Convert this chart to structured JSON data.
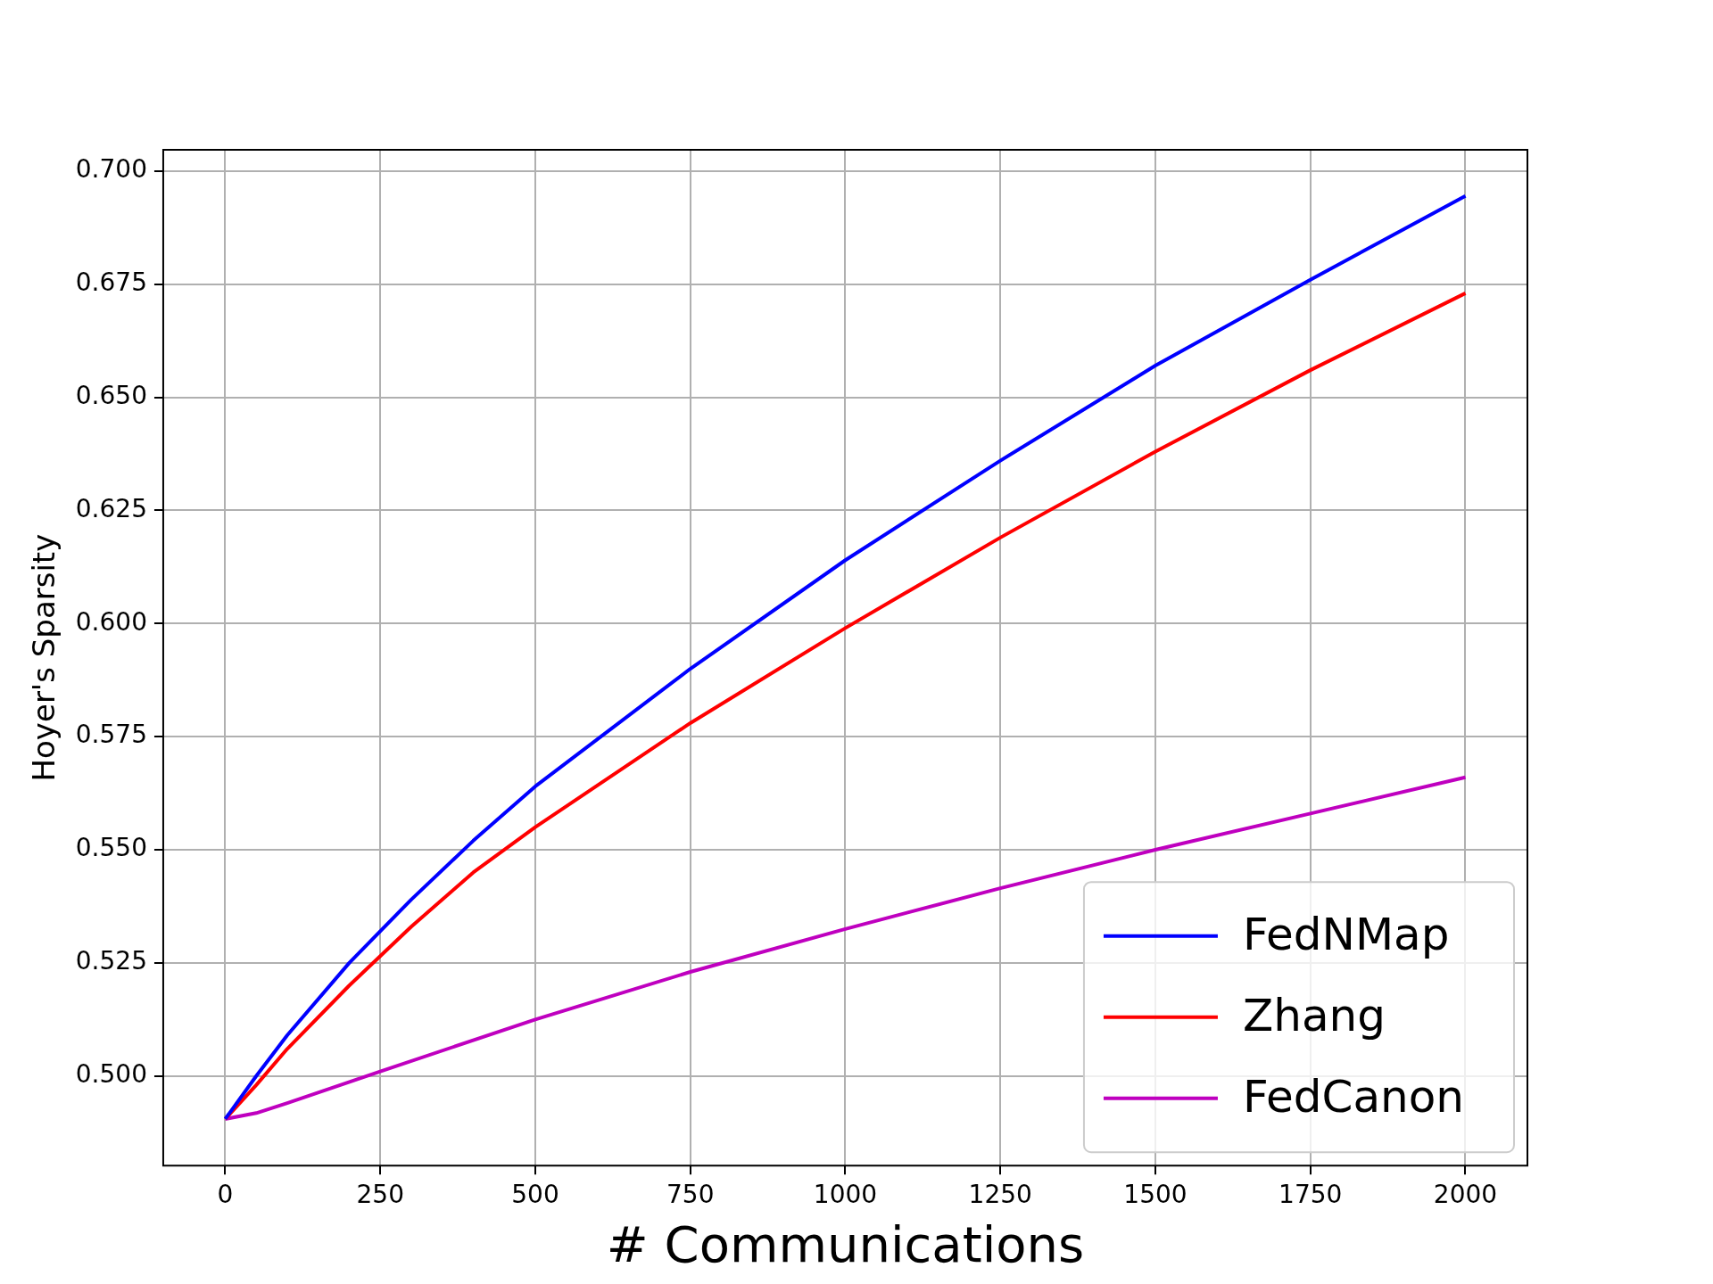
{
  "chart_data": {
    "type": "line",
    "xlabel": "# Communications",
    "ylabel": "Hoyer's Sparsity",
    "xlim": [
      -100,
      2100
    ],
    "xticks": [
      0,
      250,
      500,
      750,
      1000,
      1250,
      1500,
      1750,
      2000
    ],
    "ylim": [
      0.4802,
      0.7047
    ],
    "yticks": [
      {
        "value": 0.5,
        "label": "0.500"
      },
      {
        "value": 0.525,
        "label": "0.525"
      },
      {
        "value": 0.55,
        "label": "0.550"
      },
      {
        "value": 0.575,
        "label": "0.575"
      },
      {
        "value": 0.6,
        "label": "0.600"
      },
      {
        "value": 0.625,
        "label": "0.625"
      },
      {
        "value": 0.65,
        "label": "0.650"
      },
      {
        "value": 0.675,
        "label": "0.675"
      },
      {
        "value": 0.7,
        "label": "0.700"
      }
    ],
    "grid": true,
    "legend": "bottom right",
    "line_style": "solid",
    "marker": "none",
    "series": [
      {
        "name": "FedNMap",
        "color": "#0000ff",
        "x": [
          0,
          50,
          100,
          200,
          300,
          400,
          500,
          750,
          1000,
          1250,
          1500,
          1750,
          2000
        ],
        "values": [
          0.4905,
          0.5,
          0.509,
          0.525,
          0.539,
          0.552,
          0.564,
          0.59,
          0.614,
          0.636,
          0.657,
          0.676,
          0.6945
        ]
      },
      {
        "name": "Zhang",
        "color": "#ff0000",
        "x": [
          0,
          50,
          100,
          200,
          300,
          400,
          500,
          750,
          1000,
          1250,
          1500,
          1750,
          2000
        ],
        "values": [
          0.4905,
          0.498,
          0.506,
          0.52,
          0.533,
          0.545,
          0.555,
          0.578,
          0.599,
          0.619,
          0.638,
          0.656,
          0.673
        ]
      },
      {
        "name": "FedCanon",
        "color": "#bf00bf",
        "x": [
          0,
          50,
          100,
          250,
          500,
          750,
          1000,
          1250,
          1500,
          1750,
          2000
        ],
        "values": [
          0.4905,
          0.4918,
          0.494,
          0.501,
          0.5125,
          0.523,
          0.5325,
          0.5415,
          0.55,
          0.558,
          0.566
        ]
      }
    ]
  }
}
